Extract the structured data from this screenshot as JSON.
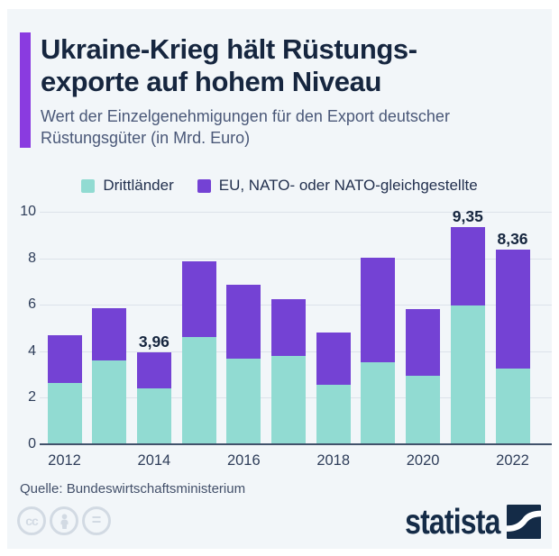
{
  "header": {
    "title_line1": "Ukraine-Krieg hält Rüstungs-",
    "title_line2": "exporte auf hohem Niveau",
    "subtitle": "Wert der Einzelgenehmigungen für den Export deutscher Rüstungsgüter (in Mrd. Euro)"
  },
  "legend": {
    "items": [
      {
        "label": "Drittländer",
        "color": "#91dbd2"
      },
      {
        "label": "EU, NATO- oder NATO-gleichgestellte",
        "color": "#7442d4"
      }
    ]
  },
  "chart_data": {
    "type": "bar",
    "stacked": true,
    "title": "Ukraine-Krieg hält Rüstungsexporte auf hohem Niveau",
    "subtitle": "Wert der Einzelgenehmigungen für den Export deutscher Rüstungsgüter (in Mrd. Euro)",
    "xlabel": "",
    "ylabel": "",
    "ylim": [
      0,
      10
    ],
    "y_ticks": [
      0,
      2,
      4,
      6,
      8,
      10
    ],
    "grid": true,
    "legend_position": "top",
    "categories": [
      2012,
      2013,
      2014,
      2015,
      2016,
      2017,
      2018,
      2019,
      2020,
      2021,
      2022
    ],
    "x_tick_labels": [
      "2012",
      "2014",
      "2016",
      "2018",
      "2020",
      "2022"
    ],
    "series": [
      {
        "name": "Drittländer",
        "color": "#91dbd2",
        "values": [
          2.62,
          3.61,
          2.4,
          4.63,
          3.67,
          3.79,
          2.55,
          3.51,
          2.94,
          5.95,
          3.26
        ]
      },
      {
        "name": "EU, NATO- oder NATO-gleichgestellte",
        "color": "#7442d4",
        "values": [
          2.08,
          2.24,
          1.56,
          3.23,
          3.18,
          2.45,
          2.27,
          4.51,
          2.88,
          3.4,
          5.1
        ]
      }
    ],
    "totals": [
      4.7,
      5.85,
      3.96,
      7.86,
      6.85,
      6.24,
      4.82,
      8.02,
      5.82,
      9.35,
      8.36
    ],
    "value_labels": {
      "2014": "3,96",
      "2021": "9,35",
      "2022": "8,36"
    }
  },
  "source": {
    "label": "Quelle: Bundeswirtschaftsministerium"
  },
  "footer": {
    "brand": "statista",
    "license_icons": [
      "cc-icon",
      "attribution-person-icon",
      "no-derivatives-equals-icon"
    ],
    "cc_text": "cc",
    "nd_text": "="
  },
  "colors": {
    "background": "#f2f6f9",
    "accent_bar": "#8a3be0",
    "title": "#16263f",
    "subtitle": "#4a5878",
    "axis_text": "#2e3d59",
    "gridline": "#dce2ea",
    "baseline": "#42526b",
    "drittlaender": "#91dbd2",
    "eu_nato": "#7442d4",
    "source_text": "#43506a",
    "license_icon": "#d2dae3",
    "brand_navy": "#142b47"
  }
}
